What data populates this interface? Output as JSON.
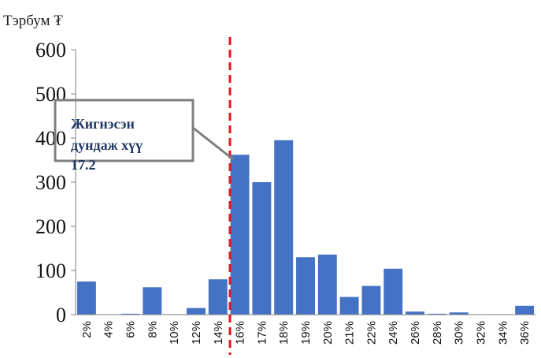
{
  "chart_data": {
    "type": "bar",
    "unit_label": "Тэрбум ₮",
    "categories": [
      "2%",
      "4%",
      "6%",
      "8%",
      "10%",
      "12%",
      "14%",
      "16%",
      "17%",
      "18%",
      "19%",
      "20%",
      "21%",
      "22%",
      "24%",
      "26%",
      "28%",
      "30%",
      "32%",
      "34%",
      "36%"
    ],
    "values": [
      75,
      0,
      2,
      62,
      1,
      15,
      80,
      362,
      300,
      395,
      130,
      136,
      40,
      65,
      104,
      7,
      2,
      5,
      0,
      1,
      20
    ],
    "ylim": [
      0,
      600
    ],
    "yticks": [
      0,
      100,
      200,
      300,
      400,
      500,
      600
    ],
    "bar_color": "#4472c4",
    "grid": false,
    "reference_line": {
      "value": 17.2,
      "color": "#e8141b",
      "style": "dashed"
    },
    "annotation": {
      "line1": "Жигнэсэн",
      "line2": "дундаж хүү",
      "line3": "17.2"
    }
  }
}
